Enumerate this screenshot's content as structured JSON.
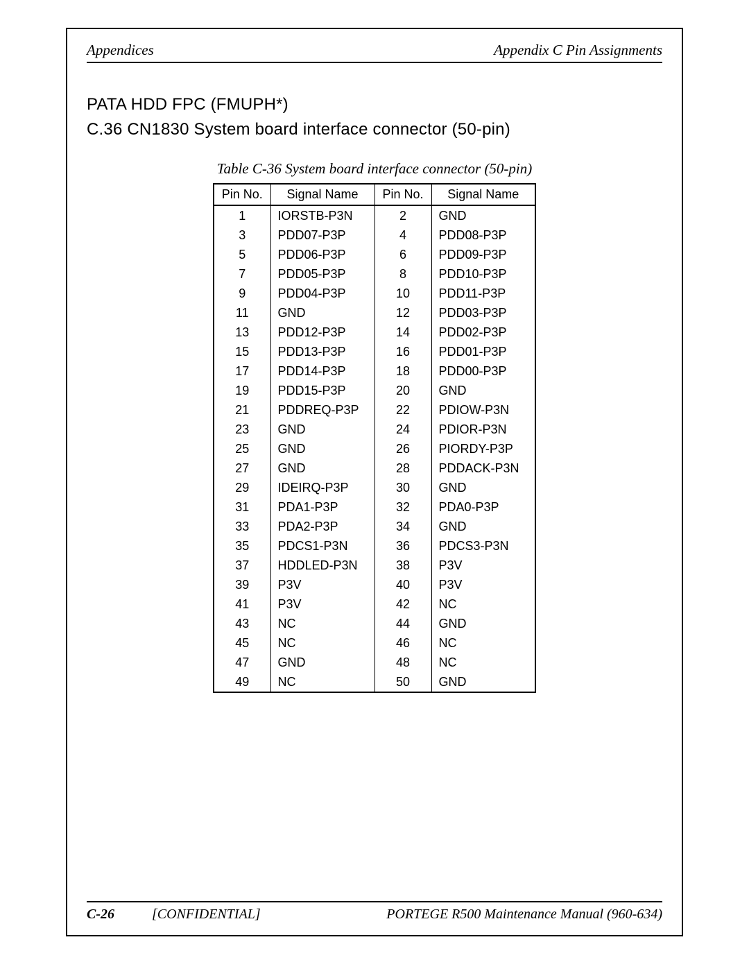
{
  "header": {
    "left": "Appendices",
    "right": "Appendix C  Pin Assignments"
  },
  "titles": {
    "line1": "PATA HDD FPC (FMUPH*)",
    "line2": "C.36   CN1830  System board interface connector (50-pin)"
  },
  "caption": "Table C-36  System board interface connector (50-pin)",
  "table": {
    "columns": [
      "Pin No.",
      "Signal Name",
      "Pin No.",
      "Signal Name"
    ],
    "col_classes": [
      "pin",
      "sig",
      "pin",
      "sig"
    ],
    "rows": [
      [
        "1",
        "IORSTB-P3N",
        "2",
        "GND"
      ],
      [
        "3",
        "PDD07-P3P",
        "4",
        "PDD08-P3P"
      ],
      [
        "5",
        "PDD06-P3P",
        "6",
        "PDD09-P3P"
      ],
      [
        "7",
        "PDD05-P3P",
        "8",
        "PDD10-P3P"
      ],
      [
        "9",
        "PDD04-P3P",
        "10",
        "PDD11-P3P"
      ],
      [
        "11",
        "GND",
        "12",
        "PDD03-P3P"
      ],
      [
        "13",
        "PDD12-P3P",
        "14",
        "PDD02-P3P"
      ],
      [
        "15",
        "PDD13-P3P",
        "16",
        "PDD01-P3P"
      ],
      [
        "17",
        "PDD14-P3P",
        "18",
        "PDD00-P3P"
      ],
      [
        "19",
        "PDD15-P3P",
        "20",
        "GND"
      ],
      [
        "21",
        "PDDREQ-P3P",
        "22",
        "PDIOW-P3N"
      ],
      [
        "23",
        "GND",
        "24",
        "PDIOR-P3N"
      ],
      [
        "25",
        "GND",
        "26",
        "PIORDY-P3P"
      ],
      [
        "27",
        "GND",
        "28",
        "PDDACK-P3N"
      ],
      [
        "29",
        "IDEIRQ-P3P",
        "30",
        "GND"
      ],
      [
        "31",
        "PDA1-P3P",
        "32",
        "PDA0-P3P"
      ],
      [
        "33",
        "PDA2-P3P",
        "34",
        "GND"
      ],
      [
        "35",
        "PDCS1-P3N",
        "36",
        "PDCS3-P3N"
      ],
      [
        "37",
        "HDDLED-P3N",
        "38",
        "P3V"
      ],
      [
        "39",
        "P3V",
        "40",
        "P3V"
      ],
      [
        "41",
        "P3V",
        "42",
        "NC"
      ],
      [
        "43",
        "NC",
        "44",
        "GND"
      ],
      [
        "45",
        "NC",
        "46",
        "NC"
      ],
      [
        "47",
        "GND",
        "48",
        "NC"
      ],
      [
        "49",
        "NC",
        "50",
        "GND"
      ]
    ]
  },
  "footer": {
    "page_no": "C-26",
    "confidential": "[CONFIDENTIAL]",
    "manual": "PORTEGE R500 Maintenance Manual (960-634)"
  }
}
